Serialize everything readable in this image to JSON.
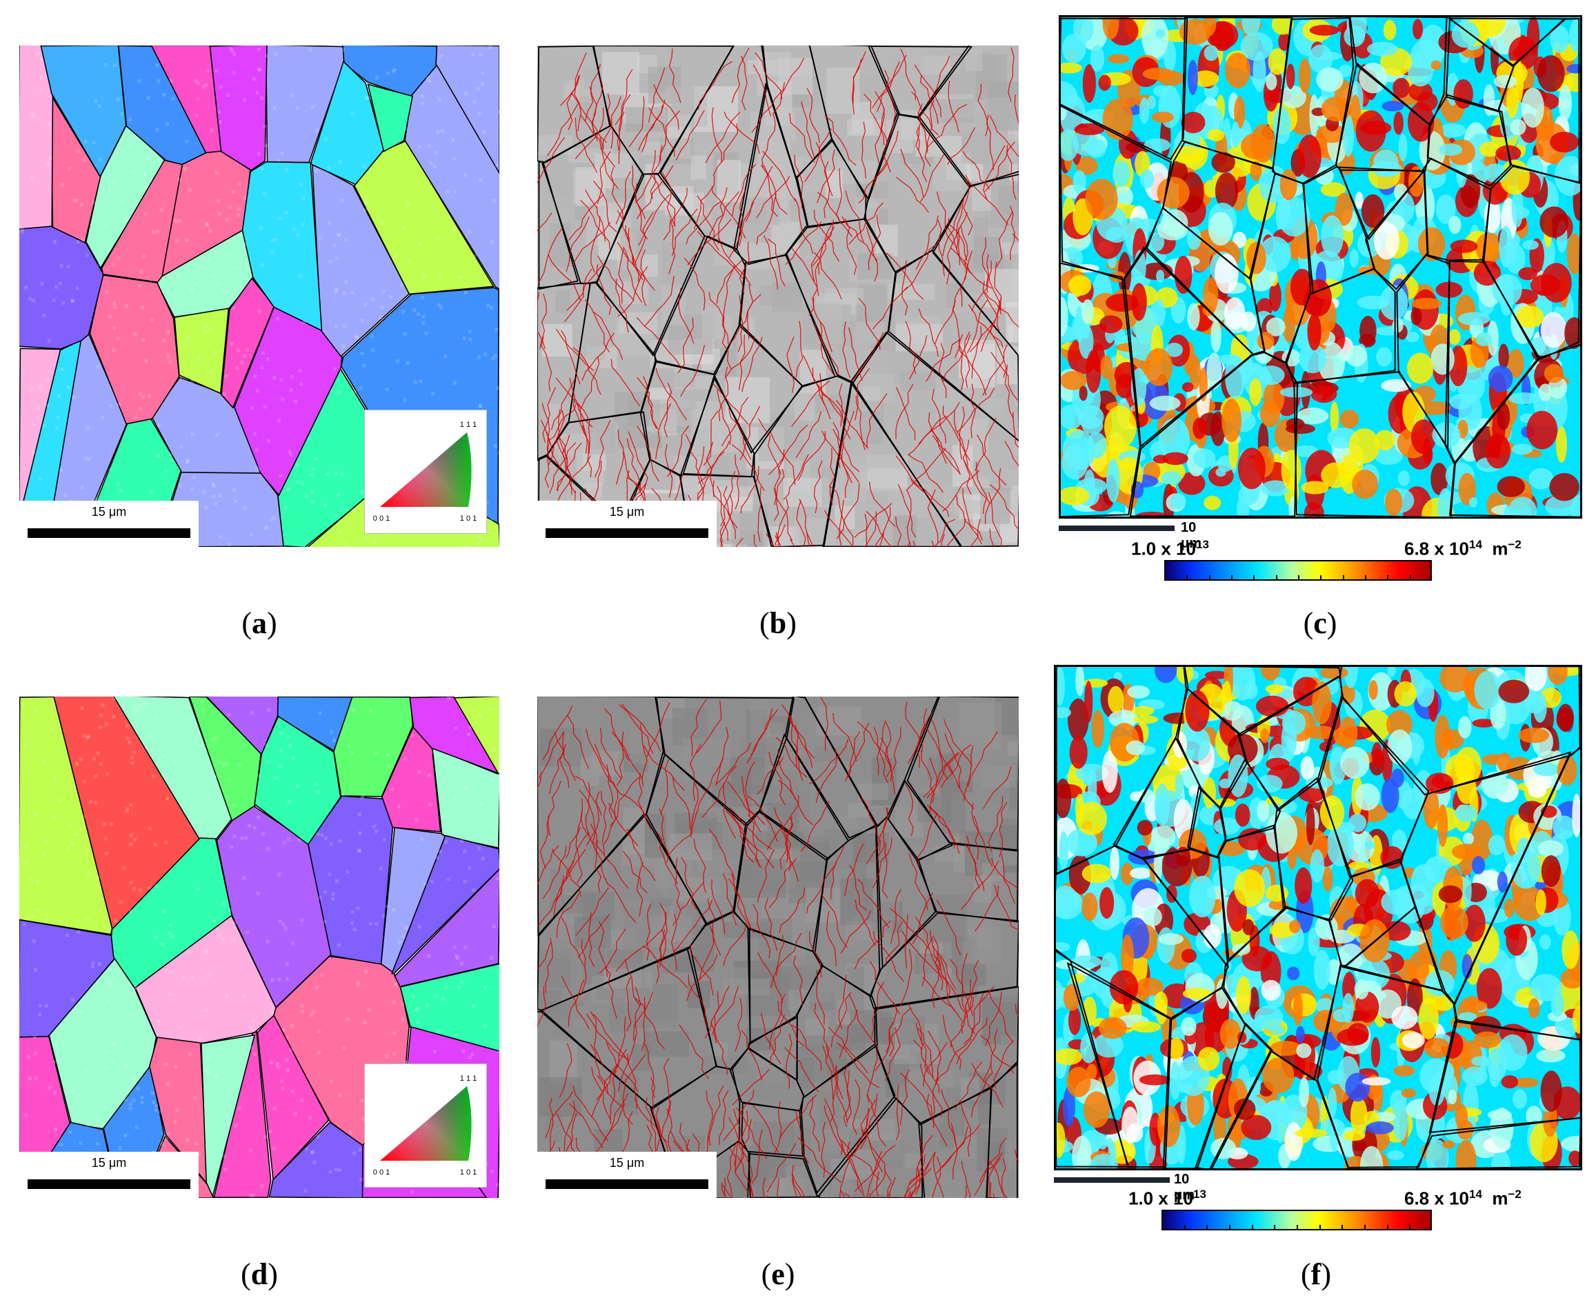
{
  "figure": {
    "panels": [
      {
        "id": "a",
        "caption": "a",
        "type": "ipf-orientation-map",
        "scale_label": "15 μm",
        "ipf_key": {
          "corner_top": "1 1 1",
          "corner_left": "0 0 1",
          "corner_right": "1 0 1"
        }
      },
      {
        "id": "b",
        "caption": "b",
        "type": "boundary-map",
        "scale_label": "15 μm"
      },
      {
        "id": "c",
        "caption": "c",
        "type": "dislocation-density-map",
        "scale_label": "10 μm",
        "colorbar": {
          "min_mantissa": "1.0 x 10",
          "min_exp": "13",
          "max_mantissa": "6.8 x 10",
          "max_exp": "14",
          "unit": "m",
          "unit_exp": "−2"
        }
      },
      {
        "id": "d",
        "caption": "d",
        "type": "ipf-orientation-map",
        "scale_label": "15 μm",
        "ipf_key": {
          "corner_top": "1 1 1",
          "corner_left": "0 0 1",
          "corner_right": "1 0 1"
        }
      },
      {
        "id": "e",
        "caption": "e",
        "type": "boundary-map",
        "scale_label": "15 μm"
      },
      {
        "id": "f",
        "caption": "f",
        "type": "dislocation-density-map",
        "scale_label": "10 μm",
        "colorbar": {
          "min_mantissa": "1.0 x 10",
          "min_exp": "13",
          "max_mantissa": "6.8 x 10",
          "max_exp": "14",
          "unit": "m",
          "unit_exp": "−2"
        }
      }
    ],
    "colors": {
      "boundary_high_angle": "#000000",
      "boundary_low_angle": "#e00000",
      "grain_palette": [
        "#ff4fc8",
        "#b060ff",
        "#40b0ff",
        "#30e0ff",
        "#60ff70",
        "#c0ff50",
        "#ff5050",
        "#ff9ad8",
        "#8060ff",
        "#e040ff",
        "#4090ff",
        "#a0ffd0",
        "#ffb0e0",
        "#30ffb0",
        "#ff70a0",
        "#9fa8ff"
      ],
      "density_palette": [
        "#00e4ff",
        "#5ff2ff",
        "#b8fff0",
        "#ffee00",
        "#ff7a00",
        "#e00000",
        "#b00000",
        "#ffffff",
        "#3050ff"
      ]
    }
  }
}
